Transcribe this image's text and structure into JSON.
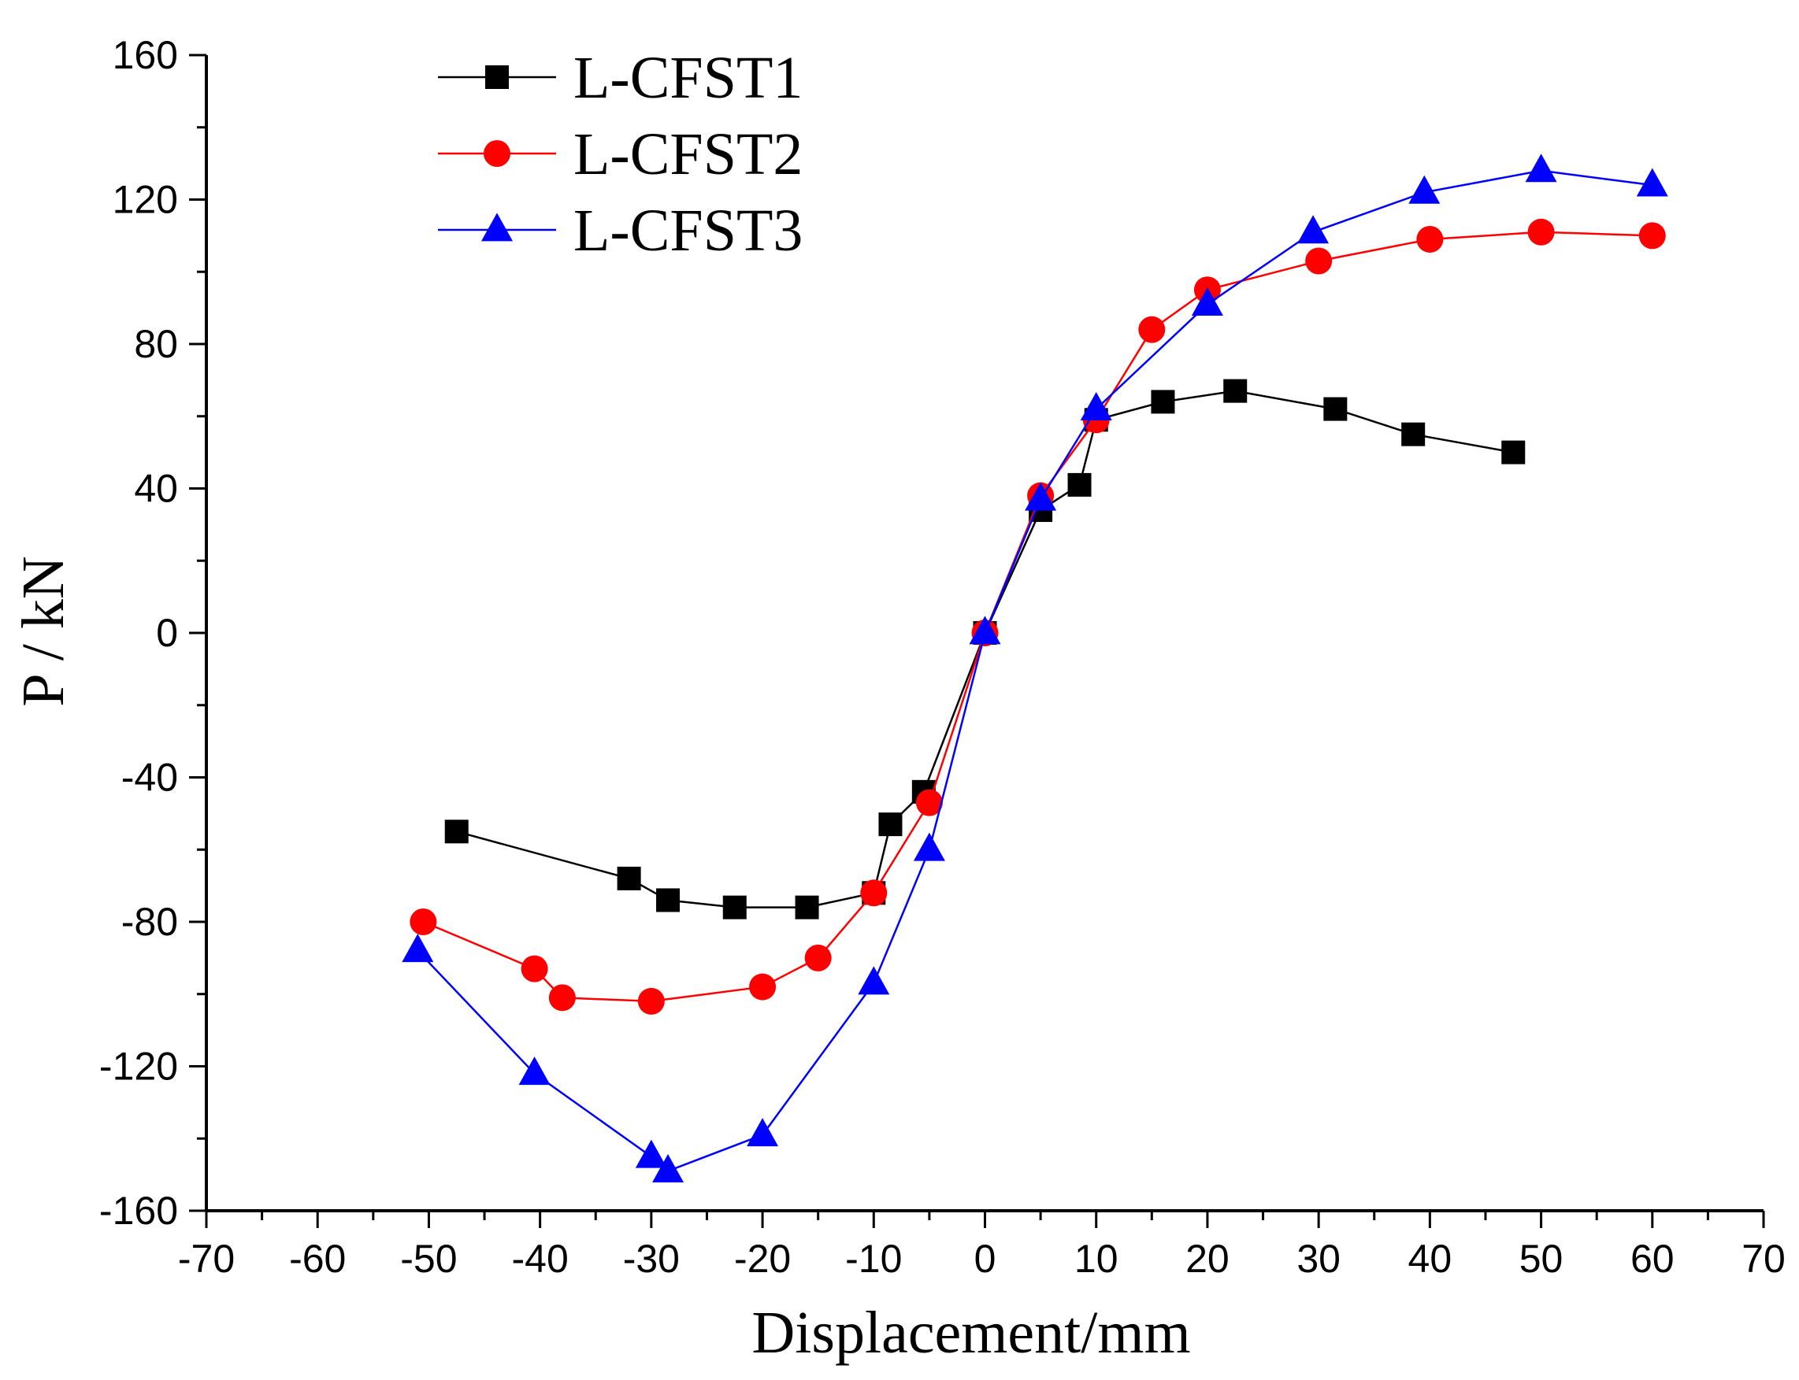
{
  "chart_data": {
    "type": "line",
    "title": "",
    "xlabel": "Displacement/mm",
    "ylabel": "P / kN",
    "xlim": [
      -70,
      70
    ],
    "ylim": [
      -160,
      160
    ],
    "xticks": [
      "-70",
      "-60",
      "-50",
      "-40",
      "-30",
      "-20",
      "-10",
      "0",
      "10",
      "20",
      "30",
      "40",
      "50",
      "60",
      "70"
    ],
    "yticks": [
      "160",
      "120",
      "80",
      "40",
      "0",
      "-40",
      "-80",
      "-120",
      "-160"
    ],
    "legend_position": "top-left",
    "grid": false,
    "series": [
      {
        "name": "L-CFST1",
        "color": "#000000",
        "marker": "square",
        "x": [
          -47.5,
          -32.0,
          -28.5,
          -22.5,
          -16.0,
          -10.0,
          -8.5,
          -5.5,
          0,
          5.0,
          8.5,
          10.0,
          16.0,
          22.5,
          31.5,
          38.5,
          47.5
        ],
        "y": [
          -55,
          -68,
          -74,
          -76,
          -76,
          -72,
          -53,
          -44,
          0,
          34,
          41,
          59,
          64,
          67,
          62,
          55,
          50
        ]
      },
      {
        "name": "L-CFST2",
        "color": "#ff0000",
        "marker": "circle",
        "x": [
          -50.5,
          -40.5,
          -38.0,
          -30.0,
          -20.0,
          -15.0,
          -10.0,
          -5.0,
          0,
          5.0,
          10.0,
          15.0,
          20.0,
          30.0,
          40.0,
          50.0,
          60.0
        ],
        "y": [
          -80,
          -93,
          -101,
          -102,
          -98,
          -90,
          -72,
          -47,
          0,
          38,
          59,
          84,
          95,
          103,
          109,
          111,
          110
        ]
      },
      {
        "name": "L-CFST3",
        "color": "#0000ff",
        "marker": "triangle",
        "x": [
          -51.0,
          -40.5,
          -30.0,
          -28.5,
          -20.0,
          -10.0,
          -5.0,
          0,
          5.0,
          10.0,
          20.0,
          29.5,
          39.5,
          50.0,
          60.0
        ],
        "y": [
          -88,
          -122,
          -145,
          -149,
          -139,
          -97,
          -60,
          0,
          37,
          62,
          91,
          111,
          122,
          128,
          124
        ]
      }
    ]
  }
}
